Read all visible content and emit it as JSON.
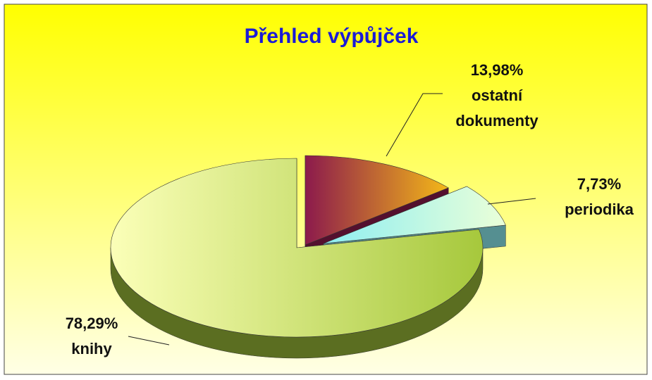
{
  "chart_data": {
    "type": "pie",
    "title": "Přehled výpůjček",
    "categories": [
      "ostatní dokumenty",
      "periodika",
      "knihy"
    ],
    "values": [
      13.98,
      7.73,
      78.29
    ],
    "value_labels": [
      "13,98%",
      "7,73%",
      "78,29%"
    ],
    "colors": [
      [
        "#8c1a4c",
        "#f4b818"
      ],
      [
        "#8eeef2",
        "#eaffd8"
      ],
      [
        "#fbffb8",
        "#a6c83c"
      ]
    ]
  }
}
